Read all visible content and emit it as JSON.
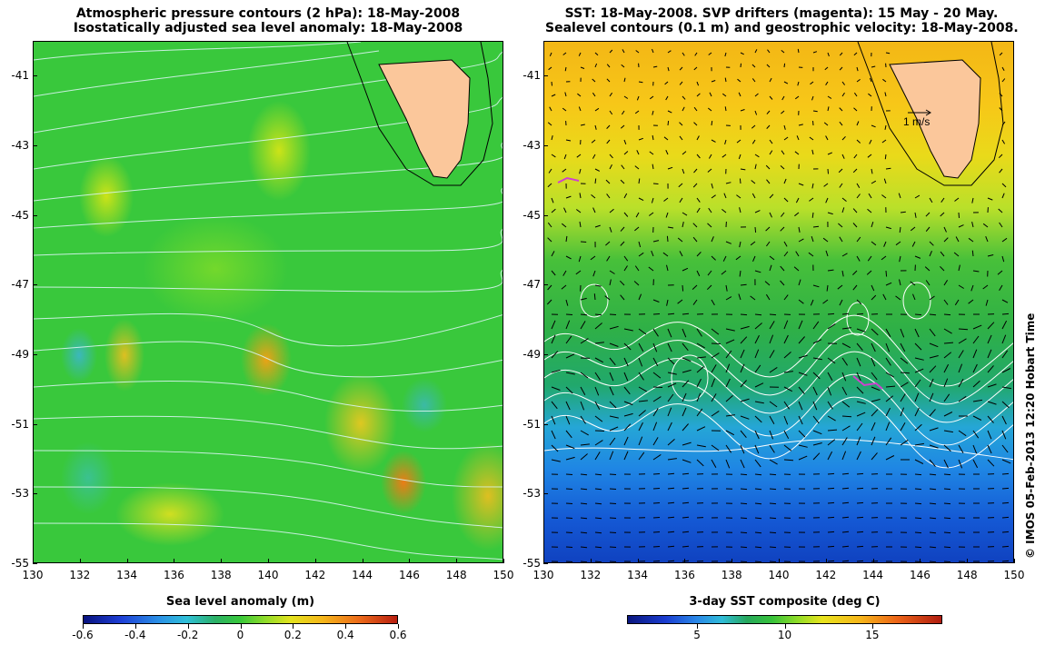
{
  "left_panel": {
    "title_line1": "Atmospheric pressure contours (2 hPa): 18-May-2008",
    "title_line2": "Isostatically adjusted sea level anomaly: 18-May-2008",
    "y_ticks": [
      "-41",
      "-43",
      "-45",
      "-47",
      "-49",
      "-51",
      "-53",
      "-55"
    ],
    "x_ticks": [
      "130",
      "132",
      "134",
      "136",
      "138",
      "140",
      "142",
      "144",
      "146",
      "148",
      "150"
    ],
    "colorbar_title": "Sea level anomaly (m)",
    "colorbar_ticks": [
      "-0.6",
      "-0.4",
      "-0.2",
      "0",
      "0.2",
      "0.4",
      "0.6"
    ],
    "colorbar_values": [
      -0.6,
      -0.4,
      -0.2,
      0,
      0.2,
      0.4,
      0.6
    ]
  },
  "right_panel": {
    "title_line1": "SST: 18-May-2008. SVP drifters (magenta): 15 May - 20 May.",
    "title_line2": "Sealevel contours (0.1 m) and geostrophic velocity: 18-May-2008.",
    "y_ticks": [
      "-41",
      "-43",
      "-45",
      "-47",
      "-49",
      "-51",
      "-53",
      "-55"
    ],
    "x_ticks": [
      "130",
      "132",
      "134",
      "136",
      "138",
      "140",
      "142",
      "144",
      "146",
      "148",
      "150"
    ],
    "velocity_scale_label": "1 m/s",
    "colorbar_title": "3-day SST composite (deg C)",
    "colorbar_ticks": [
      "5",
      "10",
      "15"
    ],
    "colorbar_values": [
      5,
      10,
      15
    ],
    "colorbar_range": [
      1,
      19
    ]
  },
  "map_extent": {
    "lon_range": [
      130,
      150
    ],
    "lat_range": [
      -55,
      -40
    ]
  },
  "credit": "© IMOS 05-Feb-2013 12:20 Hobart Time",
  "colors": {
    "land": "#fbc79b",
    "pressure_contours": "#d8f4f0",
    "drifters": "#d040d0",
    "sealevel_contours": "#ffffff"
  }
}
